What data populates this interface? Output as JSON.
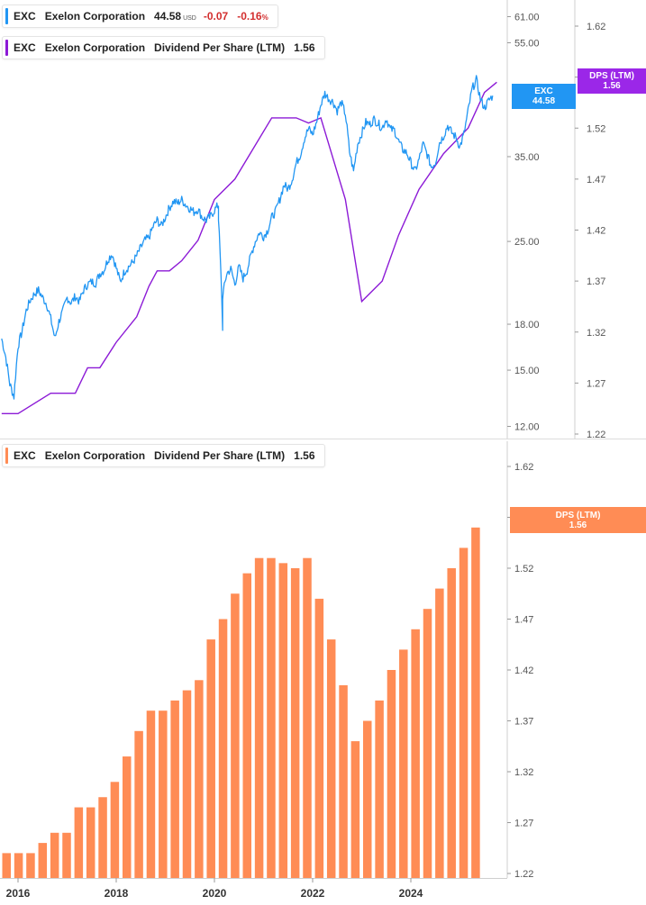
{
  "legend_price": {
    "symbol": "EXC",
    "name": "Exelon Corporation",
    "price": "44.58",
    "currency": "USD",
    "change": "-0.07",
    "change_pct": "-0.16",
    "pct_sign": "%",
    "color": "#2196f3"
  },
  "legend_dps_top": {
    "symbol": "EXC",
    "name": "Exelon Corporation",
    "metric": "Dividend Per Share (LTM)",
    "value": "1.56",
    "color": "#8c1ad6"
  },
  "legend_dps_bottom": {
    "symbol": "EXC",
    "name": "Exelon Corporation",
    "metric": "Dividend Per Share (LTM)",
    "value": "1.56",
    "color": "#ff8c55"
  },
  "tags": {
    "price": {
      "line1": "EXC",
      "line2": "44.58",
      "color": "#2196f3"
    },
    "dps_top": {
      "line1": "DPS (LTM)",
      "line2": "1.56",
      "color": "#9b27e8"
    },
    "dps_bottom": {
      "line1": "DPS (LTM)",
      "line2": "1.56",
      "color": "#ff8c55"
    }
  },
  "chart_data": [
    {
      "type": "line",
      "panel": "top",
      "y_scale": "log",
      "ylim": [
        12,
        61
      ],
      "y_ticks": [
        "61.00",
        "55.00",
        "35.00",
        "25.00",
        "18.00",
        "15.00",
        "12.00"
      ],
      "x_ticks": [
        "2016",
        "2018",
        "2020",
        "2022",
        "2024"
      ],
      "series": [
        {
          "name": "EXC",
          "color": "#2196f3",
          "points": [
            [
              "2015-09",
              17.0
            ],
            [
              "2015-10",
              15.8
            ],
            [
              "2015-11",
              14.2
            ],
            [
              "2015-12",
              13.5
            ],
            [
              "2016-01",
              16.5
            ],
            [
              "2016-02",
              17.5
            ],
            [
              "2016-03",
              19.0
            ],
            [
              "2016-04",
              19.8
            ],
            [
              "2016-05",
              20.3
            ],
            [
              "2016-06",
              20.6
            ],
            [
              "2016-07",
              20.0
            ],
            [
              "2016-08",
              19.5
            ],
            [
              "2016-09",
              18.4
            ],
            [
              "2016-10",
              17.0
            ],
            [
              "2016-11",
              18.2
            ],
            [
              "2016-12",
              19.0
            ],
            [
              "2017-01",
              20.0
            ],
            [
              "2017-02",
              19.6
            ],
            [
              "2017-03",
              20.1
            ],
            [
              "2017-04",
              19.7
            ],
            [
              "2017-05",
              20.6
            ],
            [
              "2017-06",
              21.1
            ],
            [
              "2017-07",
              21.3
            ],
            [
              "2017-08",
              21.2
            ],
            [
              "2017-09",
              22.0
            ],
            [
              "2017-10",
              22.3
            ],
            [
              "2017-11",
              23.3
            ],
            [
              "2017-12",
              23.8
            ],
            [
              "2018-01",
              22.5
            ],
            [
              "2018-02",
              21.3
            ],
            [
              "2018-03",
              22.2
            ],
            [
              "2018-04",
              22.6
            ],
            [
              "2018-05",
              23.0
            ],
            [
              "2018-06",
              23.6
            ],
            [
              "2018-07",
              24.4
            ],
            [
              "2018-08",
              25.1
            ],
            [
              "2018-09",
              25.4
            ],
            [
              "2018-10",
              26.5
            ],
            [
              "2018-11",
              27.2
            ],
            [
              "2018-12",
              26.6
            ],
            [
              "2019-01",
              27.5
            ],
            [
              "2019-02",
              28.6
            ],
            [
              "2019-03",
              29.3
            ],
            [
              "2019-04",
              29.1
            ],
            [
              "2019-05",
              29.5
            ],
            [
              "2019-06",
              28.9
            ],
            [
              "2019-07",
              28.5
            ],
            [
              "2019-08",
              28.1
            ],
            [
              "2019-09",
              28.4
            ],
            [
              "2019-10",
              27.5
            ],
            [
              "2019-11",
              27.2
            ],
            [
              "2019-12",
              27.6
            ],
            [
              "2020-01",
              28.3
            ],
            [
              "2020-02",
              28.9
            ],
            [
              "2020-02",
              27.5
            ],
            [
              "2020-03",
              17.7
            ],
            [
              "2020-03",
              20.1
            ],
            [
              "2020-04",
              22.0
            ],
            [
              "2020-05",
              22.4
            ],
            [
              "2020-06",
              21.1
            ],
            [
              "2020-07",
              22.6
            ],
            [
              "2020-08",
              21.6
            ],
            [
              "2020-09",
              22.3
            ],
            [
              "2020-10",
              23.8
            ],
            [
              "2020-11",
              25.0
            ],
            [
              "2020-12",
              25.9
            ],
            [
              "2021-01",
              25.5
            ],
            [
              "2021-02",
              26.1
            ],
            [
              "2021-03",
              27.5
            ],
            [
              "2021-04",
              28.2
            ],
            [
              "2021-05",
              29.6
            ],
            [
              "2021-06",
              31.3
            ],
            [
              "2021-07",
              30.8
            ],
            [
              "2021-08",
              32.0
            ],
            [
              "2021-09",
              34.1
            ],
            [
              "2021-10",
              35.3
            ],
            [
              "2021-11",
              37.6
            ],
            [
              "2021-12",
              39.1
            ],
            [
              "2022-01",
              38.2
            ],
            [
              "2022-02",
              40.2
            ],
            [
              "2022-03",
              43.0
            ],
            [
              "2022-04",
              45.0
            ],
            [
              "2022-05",
              44.0
            ],
            [
              "2022-06",
              43.5
            ],
            [
              "2022-07",
              42.0
            ],
            [
              "2022-08",
              43.4
            ],
            [
              "2022-09",
              41.5
            ],
            [
              "2022-10",
              35.7
            ],
            [
              "2022-11",
              33.0
            ],
            [
              "2022-12",
              36.8
            ],
            [
              "2023-01",
              38.4
            ],
            [
              "2023-02",
              40.1
            ],
            [
              "2023-03",
              39.8
            ],
            [
              "2023-04",
              40.6
            ],
            [
              "2023-05",
              39.9
            ],
            [
              "2023-06",
              39.2
            ],
            [
              "2023-07",
              40.7
            ],
            [
              "2023-08",
              39.0
            ],
            [
              "2023-09",
              38.9
            ],
            [
              "2023-10",
              37.2
            ],
            [
              "2023-11",
              36.0
            ],
            [
              "2023-12",
              35.5
            ],
            [
              "2024-01",
              34.2
            ],
            [
              "2024-02",
              33.0
            ],
            [
              "2024-03",
              34.6
            ],
            [
              "2024-04",
              36.8
            ],
            [
              "2024-05",
              35.3
            ],
            [
              "2024-06",
              33.6
            ],
            [
              "2024-07",
              34.2
            ],
            [
              "2024-08",
              37.0
            ],
            [
              "2024-09",
              38.0
            ],
            [
              "2024-10",
              39.6
            ],
            [
              "2024-11",
              38.5
            ],
            [
              "2024-12",
              37.8
            ],
            [
              "2025-01",
              36.4
            ],
            [
              "2025-02",
              38.3
            ],
            [
              "2025-03",
              42.0
            ],
            [
              "2025-04",
              45.8
            ],
            [
              "2025-05",
              47.5
            ],
            [
              "2025-06",
              44.0
            ],
            [
              "2025-07",
              42.5
            ],
            [
              "2025-08",
              43.7
            ],
            [
              "2025-09",
              44.58
            ]
          ]
        }
      ]
    },
    {
      "type": "line",
      "panel": "top",
      "y_axis": "right",
      "ylim": [
        1.22,
        1.63
      ],
      "y_ticks": [
        "1.62",
        "1.57",
        "1.52",
        "1.47",
        "1.42",
        "1.37",
        "1.32",
        "1.27",
        "1.22"
      ],
      "series": [
        {
          "name": "Dividend Per Share (LTM)",
          "color": "#8c1ad6",
          "points": [
            [
              "2015-09",
              1.24
            ],
            [
              "2016-01",
              1.24
            ],
            [
              "2016-09",
              1.26
            ],
            [
              "2017-03",
              1.26
            ],
            [
              "2017-06",
              1.285
            ],
            [
              "2017-09",
              1.285
            ],
            [
              "2018-01",
              1.31
            ],
            [
              "2018-06",
              1.335
            ],
            [
              "2018-09",
              1.365
            ],
            [
              "2018-11",
              1.38
            ],
            [
              "2019-02",
              1.38
            ],
            [
              "2019-05",
              1.39
            ],
            [
              "2019-09",
              1.41
            ],
            [
              "2020-01",
              1.45
            ],
            [
              "2020-06",
              1.47
            ],
            [
              "2021-03",
              1.53
            ],
            [
              "2021-09",
              1.53
            ],
            [
              "2021-12",
              1.525
            ],
            [
              "2022-03",
              1.53
            ],
            [
              "2022-06",
              1.49
            ],
            [
              "2022-09",
              1.45
            ],
            [
              "2023-01",
              1.35
            ],
            [
              "2023-06",
              1.37
            ],
            [
              "2023-10",
              1.415
            ],
            [
              "2024-03",
              1.46
            ],
            [
              "2024-09",
              1.495
            ],
            [
              "2025-03",
              1.52
            ],
            [
              "2025-07",
              1.555
            ],
            [
              "2025-10",
              1.565
            ]
          ]
        }
      ]
    },
    {
      "type": "bar",
      "panel": "bottom",
      "ylim": [
        1.22,
        1.63
      ],
      "y_ticks": [
        "1.62",
        "1.57",
        "1.52",
        "1.47",
        "1.42",
        "1.37",
        "1.32",
        "1.27",
        "1.22"
      ],
      "x_ticks": [
        "2016",
        "2018",
        "2020",
        "2022",
        "2024"
      ],
      "series": [
        {
          "name": "Dividend Per Share (LTM)",
          "color": "#ff8c55",
          "values": [
            1.24,
            1.24,
            1.24,
            1.25,
            1.26,
            1.26,
            1.285,
            1.285,
            1.295,
            1.31,
            1.335,
            1.36,
            1.38,
            1.38,
            1.39,
            1.4,
            1.41,
            1.45,
            1.47,
            1.495,
            1.515,
            1.53,
            1.53,
            1.525,
            1.52,
            1.53,
            1.49,
            1.45,
            1.405,
            1.35,
            1.37,
            1.39,
            1.42,
            1.44,
            1.46,
            1.48,
            1.5,
            1.52,
            1.54,
            1.56
          ]
        }
      ]
    }
  ]
}
